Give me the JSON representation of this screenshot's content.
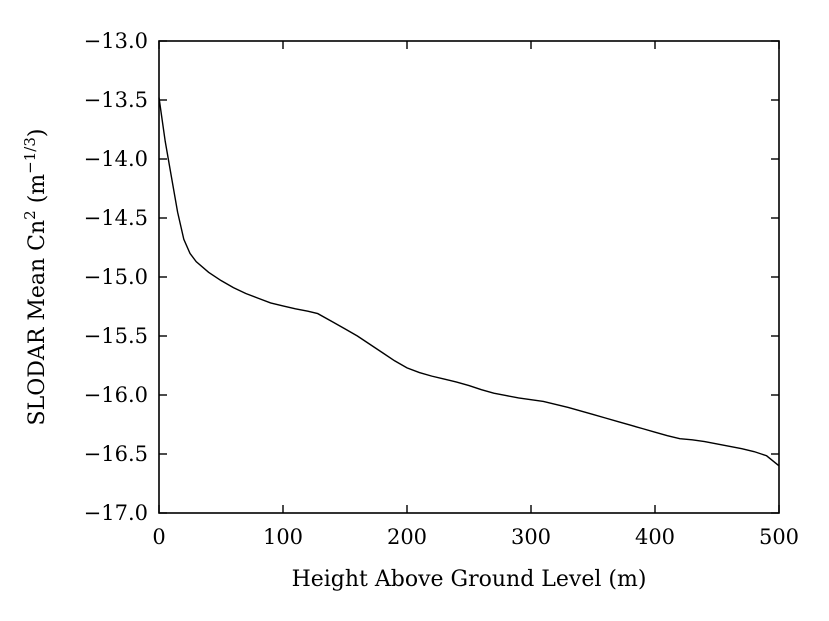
{
  "chart_data": {
    "type": "line",
    "title": "",
    "xlabel": "Height Above Ground Level (m)",
    "ylabel": {
      "base": "SLODAR Mean Cn",
      "base_sup": "2",
      "unit_open": " (m",
      "unit_sup": "−1/3",
      "unit_close": ")"
    },
    "xlim": [
      0,
      500
    ],
    "ylim": [
      -17.0,
      -13.0
    ],
    "xticks": [
      0,
      100,
      200,
      300,
      400,
      500
    ],
    "xtick_labels": [
      "0",
      "100",
      "200",
      "300",
      "400",
      "500"
    ],
    "yticks": [
      -13.0,
      -13.5,
      -14.0,
      -14.5,
      -15.0,
      -15.5,
      -16.0,
      -16.5,
      -17.0
    ],
    "ytick_labels": [
      "−13.0",
      "−13.5",
      "−14.0",
      "−14.5",
      "−15.0",
      "−15.5",
      "−16.0",
      "−16.5",
      "−17.0"
    ],
    "grid": false,
    "series": [
      {
        "x": [
          0,
          5,
          10,
          15,
          20,
          25,
          30,
          40,
          50,
          60,
          70,
          80,
          90,
          100,
          110,
          120,
          128,
          140,
          150,
          160,
          170,
          180,
          190,
          200,
          210,
          220,
          230,
          240,
          250,
          260,
          270,
          280,
          290,
          300,
          310,
          320,
          330,
          340,
          350,
          360,
          370,
          380,
          390,
          400,
          410,
          420,
          430,
          440,
          450,
          460,
          470,
          480,
          490,
          500
        ],
        "y": [
          -13.48,
          -13.85,
          -14.15,
          -14.45,
          -14.68,
          -14.8,
          -14.87,
          -14.96,
          -15.03,
          -15.09,
          -15.14,
          -15.18,
          -15.22,
          -15.245,
          -15.27,
          -15.29,
          -15.31,
          -15.38,
          -15.44,
          -15.5,
          -15.57,
          -15.64,
          -15.71,
          -15.77,
          -15.81,
          -15.84,
          -15.865,
          -15.89,
          -15.92,
          -15.955,
          -15.985,
          -16.005,
          -16.025,
          -16.04,
          -16.055,
          -16.08,
          -16.105,
          -16.135,
          -16.165,
          -16.195,
          -16.225,
          -16.255,
          -16.285,
          -16.315,
          -16.345,
          -16.37,
          -16.38,
          -16.395,
          -16.415,
          -16.435,
          -16.455,
          -16.48,
          -16.515,
          -16.6
        ]
      }
    ]
  }
}
